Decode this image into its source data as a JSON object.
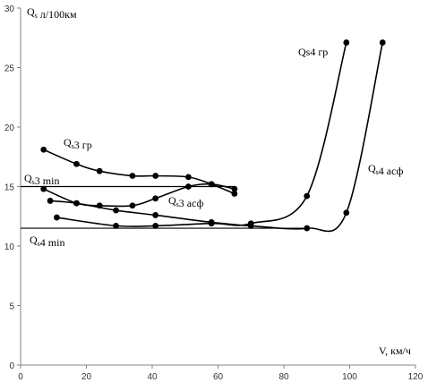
{
  "chart_data": {
    "type": "line",
    "ylabel": "Q_s л/100км",
    "xlabel": "V, км/ч",
    "xlim": [
      0,
      120
    ],
    "ylim": [
      0,
      30
    ],
    "xticks": [
      0,
      20,
      40,
      60,
      80,
      100,
      120
    ],
    "yticks": [
      0,
      5,
      10,
      15,
      20,
      25,
      30
    ],
    "grid": false,
    "series": [
      {
        "name": "Q_s3 гр",
        "x": [
          7,
          17,
          24,
          34,
          41,
          51,
          58,
          65
        ],
        "y": [
          18.1,
          16.9,
          16.3,
          15.9,
          15.9,
          15.8,
          15.2,
          14.4
        ]
      },
      {
        "name": "Q_s3 асф",
        "x": [
          7,
          17,
          24,
          34,
          41,
          51,
          58,
          65
        ],
        "y": [
          14.8,
          13.6,
          13.4,
          13.4,
          14.0,
          15.0,
          15.2,
          14.8
        ]
      },
      {
        "name": "Q_s4 гр",
        "x": [
          11,
          29,
          41,
          58,
          70,
          87,
          99
        ],
        "y": [
          12.4,
          11.7,
          11.7,
          11.9,
          11.9,
          14.2,
          27.1
        ]
      },
      {
        "name": "Q_s4 асф",
        "x": [
          9,
          17,
          29,
          41,
          58,
          70,
          87,
          99,
          110
        ],
        "y": [
          13.8,
          13.6,
          13.0,
          12.6,
          12.0,
          11.7,
          11.5,
          12.8,
          27.1
        ]
      }
    ],
    "reference_lines": [
      {
        "label": "Q_s3 min",
        "y": 15.0,
        "x_start": 0,
        "x_end": 65
      },
      {
        "label": "Q_s4 min",
        "y": 11.5,
        "x_start": 0,
        "x_end": 87
      }
    ],
    "annotations": {
      "ylabel": "Q_s л/100км",
      "xlabel": "V, км/ч",
      "s3gr": "Q_s3 гр",
      "s3asf": "Q_s3 асф",
      "s4gr": "Qs4 гр",
      "s4asf": "Q_s4 асф",
      "s3min": "Q_s3 min",
      "s4min": "Q_s4 min"
    }
  }
}
